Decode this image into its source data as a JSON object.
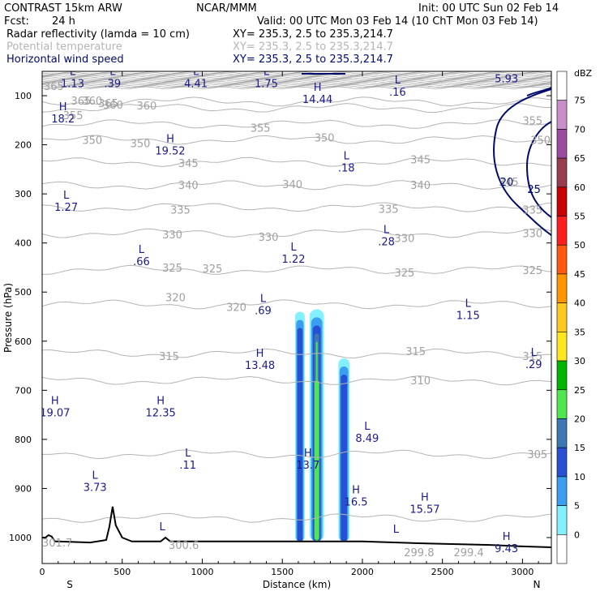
{
  "header": {
    "model": "CONTRAST 15km ARW",
    "org": "NCAR/MMM",
    "init": "Init: 00 UTC Sun 02 Feb 14",
    "fcst_label": "Fcst:",
    "fcst_value": "24 h",
    "valid": "Valid: 00 UTC Mon 03 Feb 14 (10 ChT Mon 03 Feb 14)",
    "fields": [
      {
        "name": "Radar reflectivity (lamda = 10 cm)",
        "xy": "XY= 235.3,  2.5 to 235.3,214.7",
        "color": "#000000"
      },
      {
        "name": "Potential temperature",
        "xy": "XY= 235.3,  2.5 to 235.3,214.7",
        "color": "#b4b4b4"
      },
      {
        "name": "Horizontal wind speed",
        "xy": "XY= 235.3,  2.5 to 235.3,214.7",
        "color": "#000a6e"
      }
    ]
  },
  "chart_data": {
    "type": "heatmap",
    "xlabel": "Distance (km)",
    "ylabel": "Pressure (hPa)",
    "xlim": [
      0,
      3200
    ],
    "ylim": [
      1050,
      50
    ],
    "x_ticks": [
      0,
      500,
      1000,
      1500,
      2000,
      2500,
      3000
    ],
    "y_ticks": [
      100,
      200,
      300,
      400,
      500,
      600,
      700,
      800,
      900,
      1000
    ],
    "x_end_labels": {
      "left": "S",
      "right": "N"
    },
    "colorbar": {
      "unit": "dBZ",
      "levels": [
        75,
        70,
        65,
        60,
        55,
        50,
        45,
        40,
        35,
        30,
        25,
        20,
        15,
        10,
        5,
        0
      ],
      "colors": [
        "#ffffff",
        "#c890c8",
        "#9a4ca0",
        "#9a3c50",
        "#c80000",
        "#ff1e1e",
        "#ff5a0f",
        "#ff9600",
        "#ffc81e",
        "#ffe61e",
        "#00b400",
        "#50e650",
        "#3c78b4",
        "#2850d2",
        "#3c9ef0",
        "#82f0ff",
        "#ffffff"
      ]
    },
    "theta_contours": [
      {
        "value": 365,
        "labels": [
          [
            10,
            80
          ],
          [
            180,
            110
          ],
          [
            350,
            115
          ]
        ]
      },
      {
        "value": 360,
        "labels": [
          [
            250,
            110
          ],
          [
            380,
            118
          ],
          [
            590,
            120
          ]
        ]
      },
      {
        "value": 355,
        "labels": [
          [
            130,
            140
          ],
          [
            1300,
            165
          ],
          [
            3000,
            150
          ]
        ]
      },
      {
        "value": 350,
        "labels": [
          [
            250,
            190
          ],
          [
            550,
            197
          ],
          [
            1700,
            185
          ],
          [
            3050,
            190
          ]
        ]
      },
      {
        "value": 345,
        "labels": [
          [
            850,
            237
          ],
          [
            2300,
            230
          ],
          [
            2850,
            275
          ]
        ]
      },
      {
        "value": 340,
        "labels": [
          [
            850,
            282
          ],
          [
            1500,
            280
          ],
          [
            2300,
            282
          ]
        ]
      },
      {
        "value": 335,
        "labels": [
          [
            800,
            332
          ],
          [
            2100,
            330
          ],
          [
            3000,
            332
          ]
        ]
      },
      {
        "value": 330,
        "labels": [
          [
            750,
            382
          ],
          [
            1350,
            387
          ],
          [
            2200,
            390
          ],
          [
            3000,
            380
          ]
        ]
      },
      {
        "value": 325,
        "labels": [
          [
            750,
            450
          ],
          [
            1000,
            452
          ],
          [
            2200,
            460
          ],
          [
            3000,
            455
          ]
        ]
      },
      {
        "value": 320,
        "labels": [
          [
            770,
            510
          ],
          [
            1150,
            530
          ]
        ]
      },
      {
        "value": 315,
        "labels": [
          [
            730,
            630
          ],
          [
            2270,
            620
          ],
          [
            3000,
            630
          ]
        ]
      },
      {
        "value": 310,
        "labels": [
          [
            2300,
            680
          ]
        ]
      },
      {
        "value": 305,
        "labels": [
          [
            3030,
            830
          ]
        ]
      },
      {
        "value": 301.7,
        "labels": [
          [
            0,
            1010
          ]
        ]
      },
      {
        "value": 300.6,
        "labels": [
          [
            790,
            1015
          ]
        ]
      },
      {
        "value": 299.8,
        "labels": [
          [
            2260,
            1030
          ]
        ]
      },
      {
        "value": 299.4,
        "labels": [
          [
            2570,
            1030
          ]
        ]
      }
    ],
    "wind_contours": [
      {
        "value": 20,
        "labels": [
          [
            2860,
            275
          ]
        ]
      },
      {
        "value": 25,
        "labels": [
          [
            3030,
            290
          ]
        ]
      }
    ],
    "extrema": [
      {
        "type": "L",
        "value": "1.13",
        "x": 190,
        "y": 58
      },
      {
        "type": "L",
        "value": ".39",
        "x": 440,
        "y": 58
      },
      {
        "type": "L",
        "value": "4.41",
        "x": 960,
        "y": 58
      },
      {
        "type": "L",
        "value": "1.75",
        "x": 1400,
        "y": 58
      },
      {
        "type": "H",
        "value": "14.44",
        "x": 1720,
        "y": 90
      },
      {
        "type": "L",
        "value": ".16",
        "x": 2220,
        "y": 75
      },
      {
        "type": "L",
        "value": "5.93",
        "x": 2900,
        "y": 48
      },
      {
        "type": "H",
        "value": "18.2",
        "x": 130,
        "y": 130
      },
      {
        "type": "H",
        "value": "19.52",
        "x": 800,
        "y": 195
      },
      {
        "type": "L",
        "value": ".18",
        "x": 1900,
        "y": 230
      },
      {
        "type": "L",
        "value": "1.27",
        "x": 150,
        "y": 310
      },
      {
        "type": "L",
        "value": ".66",
        "x": 620,
        "y": 420
      },
      {
        "type": "L",
        "value": "1.22",
        "x": 1570,
        "y": 415
      },
      {
        "type": "L",
        "value": ".28",
        "x": 2150,
        "y": 380
      },
      {
        "type": "L",
        "value": ".69",
        "x": 1380,
        "y": 520
      },
      {
        "type": "L",
        "value": "1.15",
        "x": 2660,
        "y": 530
      },
      {
        "type": "H",
        "value": "13.48",
        "x": 1360,
        "y": 632
      },
      {
        "type": "L",
        "value": ".29",
        "x": 3070,
        "y": 630
      },
      {
        "type": "H",
        "value": "19.07",
        "x": 80,
        "y": 728
      },
      {
        "type": "H",
        "value": "12.35",
        "x": 740,
        "y": 728
      },
      {
        "type": "L",
        "value": "8.49",
        "x": 2030,
        "y": 780
      },
      {
        "type": "L",
        "value": ".11",
        "x": 910,
        "y": 835
      },
      {
        "type": "H",
        "value": "13.7",
        "x": 1660,
        "y": 835
      },
      {
        "type": "L",
        "value": "3.73",
        "x": 330,
        "y": 880
      },
      {
        "type": "H",
        "value": "16.5",
        "x": 1960,
        "y": 910
      },
      {
        "type": "H",
        "value": "15.57",
        "x": 2390,
        "y": 925
      },
      {
        "type": "L",
        "value": "",
        "x": 750,
        "y": 985
      },
      {
        "type": "L",
        "value": "",
        "x": 2210,
        "y": 990
      },
      {
        "type": "H",
        "value": "9.43",
        "x": 2900,
        "y": 1005
      }
    ],
    "terrain": [
      [
        0,
        1000
      ],
      [
        20,
        1000
      ],
      [
        40,
        995
      ],
      [
        60,
        998
      ],
      [
        80,
        1008
      ],
      [
        100,
        1008
      ],
      [
        300,
        1010
      ],
      [
        400,
        1005
      ],
      [
        420,
        978
      ],
      [
        440,
        937
      ],
      [
        460,
        975
      ],
      [
        500,
        1000
      ],
      [
        560,
        1008
      ],
      [
        740,
        1008
      ],
      [
        770,
        1000
      ],
      [
        800,
        1008
      ],
      [
        1500,
        1008
      ],
      [
        2000,
        1008
      ],
      [
        2400,
        1012
      ],
      [
        2800,
        1015
      ],
      [
        3000,
        1018
      ],
      [
        3200,
        1020
      ]
    ],
    "reflectivity_cells": [
      {
        "x": [
          1580,
          1640
        ],
        "top_p": 540,
        "max_dbz": 15
      },
      {
        "x": [
          1670,
          1760
        ],
        "top_p": 535,
        "max_dbz": 25
      },
      {
        "x": [
          1850,
          1920
        ],
        "top_p": 635,
        "max_dbz": 15
      }
    ]
  }
}
